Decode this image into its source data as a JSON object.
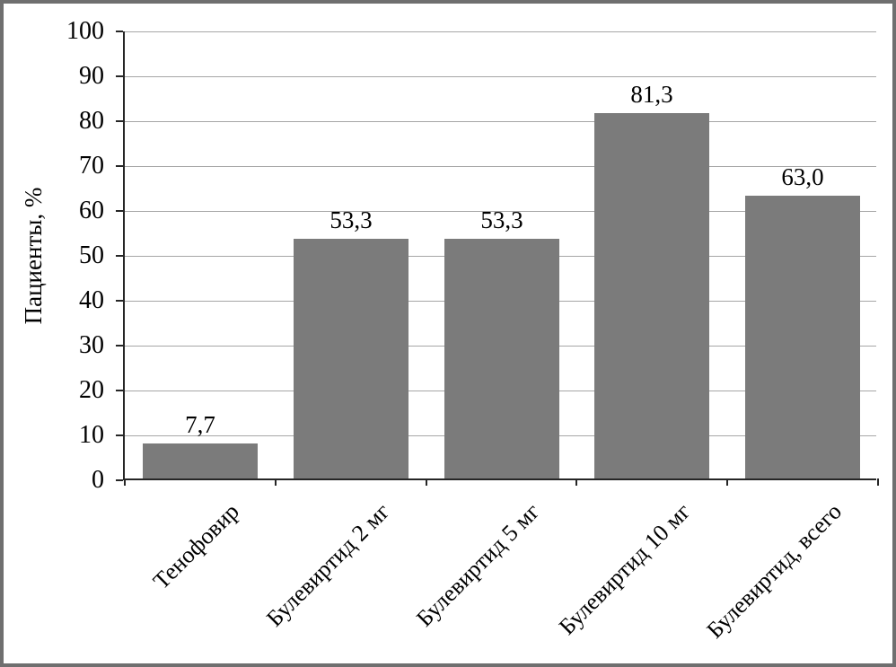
{
  "chart_data": {
    "type": "bar",
    "title": "",
    "xlabel": "",
    "ylabel": "Пациенты, %",
    "categories": [
      "Тенофовир",
      "Булевиртид 2 мг",
      "Булевиртид 5 мг",
      "Булевиртид 10 мг",
      "Булевиртид, всего"
    ],
    "values": [
      7.7,
      53.3,
      53.3,
      81.3,
      63.0
    ],
    "value_labels": [
      "7,7",
      "53,3",
      "53,3",
      "81,3",
      "63,0"
    ],
    "ylim": [
      0,
      100
    ],
    "yticks": [
      0,
      10,
      20,
      30,
      40,
      50,
      60,
      70,
      80,
      90,
      100
    ],
    "grid": "horizontal-on",
    "legend": "none",
    "x_label_rotation_deg": 45,
    "decimal_separator": ",",
    "colors": {
      "bar_fill": "#7b7b7b",
      "gridline": "#a6a6a6",
      "axis": "#262626",
      "frame_border": "#6f6f6f",
      "text": "#000000",
      "background": "#ffffff"
    }
  }
}
